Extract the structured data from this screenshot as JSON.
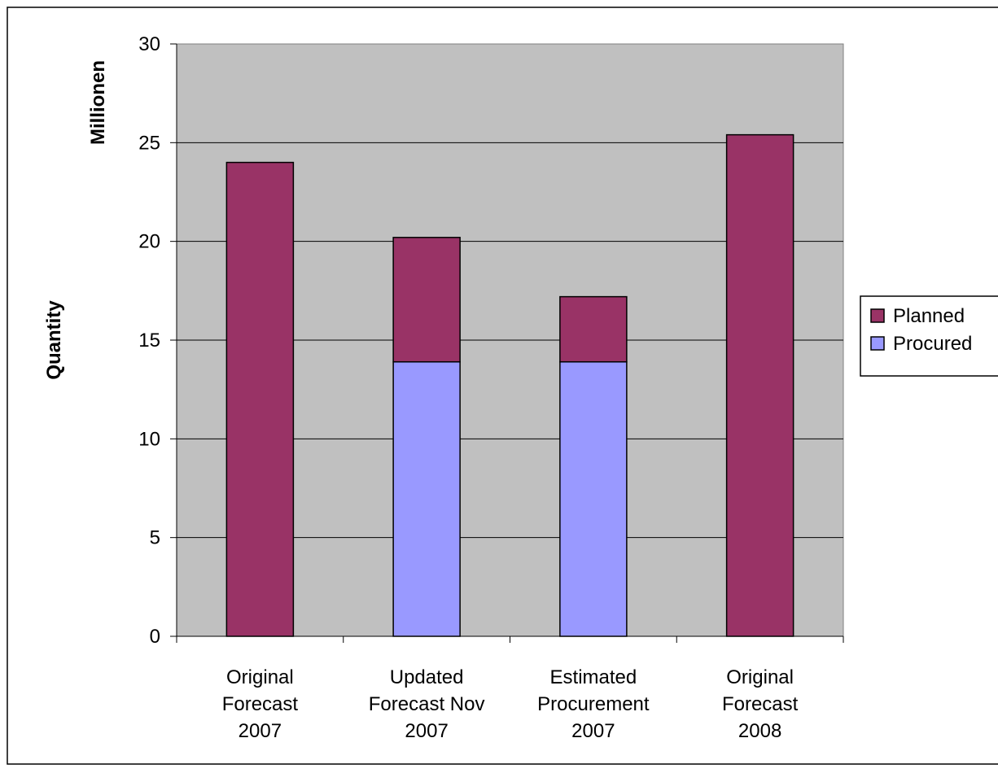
{
  "chart_data": {
    "type": "bar",
    "stacked": true,
    "categories": [
      [
        "Original",
        "Forecast",
        "2007"
      ],
      [
        "Updated",
        "Forecast Nov",
        "2007"
      ],
      [
        "Estimated",
        "Procurement",
        "2007"
      ],
      [
        "Original",
        "Forecast",
        "2008"
      ]
    ],
    "series": [
      {
        "name": "Procured",
        "color": "#9999ff",
        "values": [
          0,
          13.9,
          13.9,
          0
        ]
      },
      {
        "name": "Planned",
        "color": "#993366",
        "values": [
          24.0,
          6.3,
          3.3,
          25.4
        ]
      }
    ],
    "legend_order": [
      "Planned",
      "Procured"
    ],
    "ylabel": "Quantity",
    "yunit": "Millionen",
    "ylim": [
      0,
      30
    ],
    "yticks": [
      0,
      5,
      10,
      15,
      20,
      25,
      30
    ],
    "grid": true,
    "plot_background": "#c0c0c0",
    "legend_position": "right"
  }
}
